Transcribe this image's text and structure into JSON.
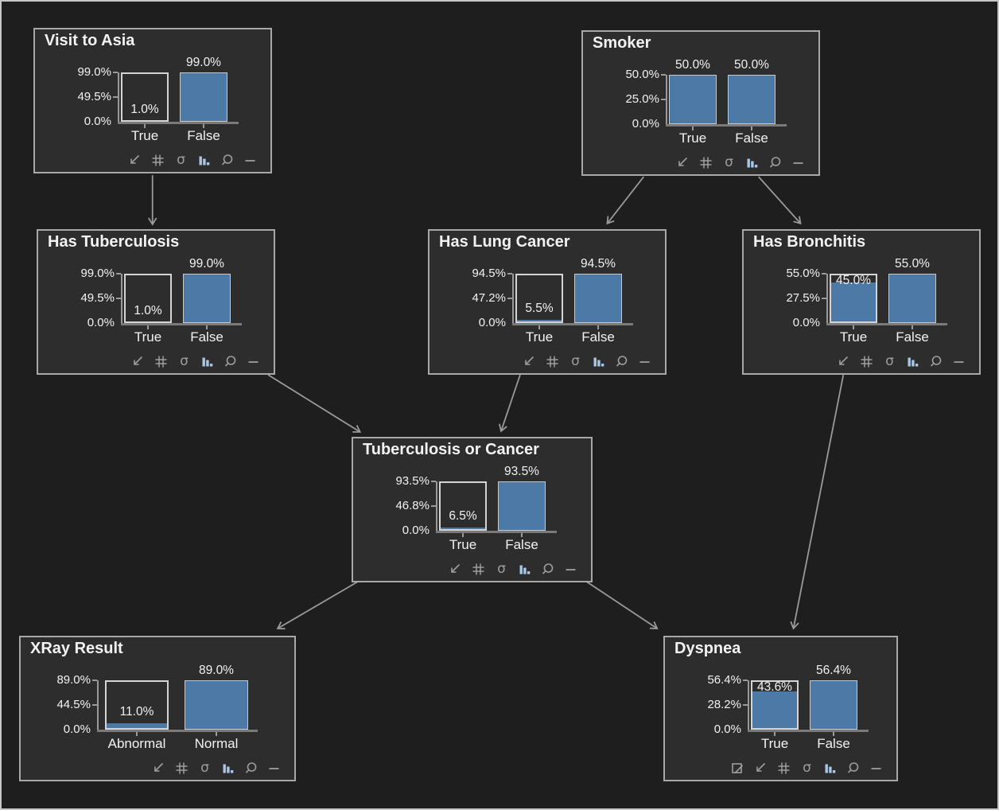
{
  "colors": {
    "background": "#1e1e1f",
    "panel": "#2d2d2e",
    "panel_border": "#a8a8a8",
    "bar_blue": "#4d79a7",
    "bar_border": "#c9c9c9",
    "outline_box": "#d4d4d4",
    "axis": "#9a9a9a",
    "baseline": "#7a7a7a",
    "edge": "#9a9a9a",
    "text": "#f2f2f2",
    "icon": "#9e9e9e",
    "icon_bar_chart": "#a9c7e5"
  },
  "nodes": [
    {
      "id": "visit-to-asia",
      "title": "Visit to Asia",
      "y_ticks": [
        "99.0%",
        "49.5%",
        "0.0%"
      ],
      "max": 99.0,
      "states": [
        {
          "label": "True",
          "value": 1.0,
          "value_label": "1.0%",
          "outlined": true
        },
        {
          "label": "False",
          "value": 99.0,
          "value_label": "99.0%",
          "outlined": false
        }
      ],
      "toolbar": [
        "diagonal-arrow-icon",
        "grid-icon",
        "sigma-icon",
        "bar-chart-icon",
        "magnifier-icon",
        "minimize-icon"
      ]
    },
    {
      "id": "smoker",
      "title": "Smoker",
      "y_ticks": [
        "50.0%",
        "25.0%",
        "0.0%"
      ],
      "max": 50.0,
      "states": [
        {
          "label": "True",
          "value": 50.0,
          "value_label": "50.0%",
          "outlined": false
        },
        {
          "label": "False",
          "value": 50.0,
          "value_label": "50.0%",
          "outlined": false
        }
      ],
      "toolbar": [
        "diagonal-arrow-icon",
        "grid-icon",
        "sigma-icon",
        "bar-chart-icon",
        "magnifier-icon",
        "minimize-icon"
      ]
    },
    {
      "id": "has-tuberculosis",
      "title": "Has Tuberculosis",
      "y_ticks": [
        "99.0%",
        "49.5%",
        "0.0%"
      ],
      "max": 99.0,
      "states": [
        {
          "label": "True",
          "value": 1.0,
          "value_label": "1.0%",
          "outlined": true
        },
        {
          "label": "False",
          "value": 99.0,
          "value_label": "99.0%",
          "outlined": false
        }
      ],
      "toolbar": [
        "diagonal-arrow-icon",
        "grid-icon",
        "sigma-icon",
        "bar-chart-icon",
        "magnifier-icon",
        "minimize-icon"
      ]
    },
    {
      "id": "has-lung-cancer",
      "title": "Has Lung Cancer",
      "y_ticks": [
        "94.5%",
        "47.2%",
        "0.0%"
      ],
      "max": 94.5,
      "states": [
        {
          "label": "True",
          "value": 5.5,
          "value_label": "5.5%",
          "outlined": true
        },
        {
          "label": "False",
          "value": 94.5,
          "value_label": "94.5%",
          "outlined": false
        }
      ],
      "toolbar": [
        "diagonal-arrow-icon",
        "grid-icon",
        "sigma-icon",
        "bar-chart-icon",
        "magnifier-icon",
        "minimize-icon"
      ]
    },
    {
      "id": "has-bronchitis",
      "title": "Has Bronchitis",
      "y_ticks": [
        "55.0%",
        "27.5%",
        "0.0%"
      ],
      "max": 55.0,
      "states": [
        {
          "label": "True",
          "value": 45.0,
          "value_label": "45.0%",
          "outlined": true
        },
        {
          "label": "False",
          "value": 55.0,
          "value_label": "55.0%",
          "outlined": false
        }
      ],
      "toolbar": [
        "diagonal-arrow-icon",
        "grid-icon",
        "sigma-icon",
        "bar-chart-icon",
        "magnifier-icon",
        "minimize-icon"
      ]
    },
    {
      "id": "tuberculosis-or-cancer",
      "title": "Tuberculosis or Cancer",
      "y_ticks": [
        "93.5%",
        "46.8%",
        "0.0%"
      ],
      "max": 93.5,
      "states": [
        {
          "label": "True",
          "value": 6.5,
          "value_label": "6.5%",
          "outlined": true
        },
        {
          "label": "False",
          "value": 93.5,
          "value_label": "93.5%",
          "outlined": false
        }
      ],
      "toolbar": [
        "diagonal-arrow-icon",
        "grid-icon",
        "sigma-icon",
        "bar-chart-icon",
        "magnifier-icon",
        "minimize-icon"
      ]
    },
    {
      "id": "xray-result",
      "title": "XRay Result",
      "wide": true,
      "y_ticks": [
        "89.0%",
        "44.5%",
        "0.0%"
      ],
      "max": 89.0,
      "states": [
        {
          "label": "Abnormal",
          "value": 11.0,
          "value_label": "11.0%",
          "outlined": true
        },
        {
          "label": "Normal",
          "value": 89.0,
          "value_label": "89.0%",
          "outlined": false
        }
      ],
      "toolbar": [
        "diagonal-arrow-icon",
        "grid-icon",
        "sigma-icon",
        "bar-chart-icon",
        "magnifier-icon",
        "minimize-icon"
      ]
    },
    {
      "id": "dyspnea",
      "title": "Dyspnea",
      "y_ticks": [
        "56.4%",
        "28.2%",
        "0.0%"
      ],
      "max": 56.4,
      "states": [
        {
          "label": "True",
          "value": 43.6,
          "value_label": "43.6%",
          "outlined": true
        },
        {
          "label": "False",
          "value": 56.4,
          "value_label": "56.4%",
          "outlined": false
        }
      ],
      "toolbar": [
        "box-diagonal-icon",
        "diagonal-arrow-icon",
        "grid-icon",
        "sigma-icon",
        "bar-chart-icon",
        "magnifier-icon",
        "minimize-icon"
      ]
    }
  ],
  "edges": [
    {
      "from": "visit-to-asia",
      "to": "has-tuberculosis"
    },
    {
      "from": "smoker",
      "to": "has-lung-cancer"
    },
    {
      "from": "smoker",
      "to": "has-bronchitis"
    },
    {
      "from": "has-tuberculosis",
      "to": "tuberculosis-or-cancer"
    },
    {
      "from": "has-lung-cancer",
      "to": "tuberculosis-or-cancer"
    },
    {
      "from": "tuberculosis-or-cancer",
      "to": "xray-result"
    },
    {
      "from": "tuberculosis-or-cancer",
      "to": "dyspnea"
    },
    {
      "from": "has-bronchitis",
      "to": "dyspnea"
    }
  ]
}
